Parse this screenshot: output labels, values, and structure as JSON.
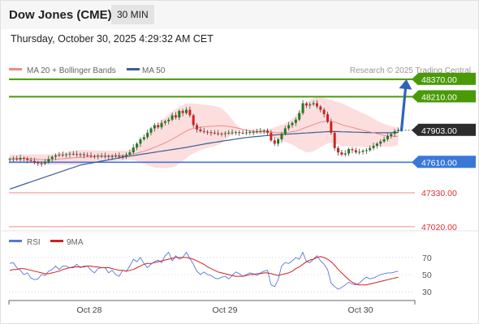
{
  "header": {
    "title": "Dow Jones (CME)",
    "timeframe": "30 MIN"
  },
  "timestamp": "Thursday, October 30, 2025 4:29:32 AM CET",
  "legend": {
    "ma20": "MA 20 + Bollinger Bands",
    "ma50": "MA 50",
    "credit": "Research © 2025 Trading Central",
    "rsi": "RSI",
    "ma9": "9MA"
  },
  "colors": {
    "green": "#4a9a08",
    "blue": "#3a78d8",
    "red": "#e03030",
    "candle_bull": "#1e7b1e",
    "candle_bear": "#d32020",
    "band": "#fbd3d3",
    "ma20": "#f08a8a",
    "ma50": "#3b5d9a",
    "rsi": "#5577d9",
    "ma9": "#d22020",
    "last": "#2c2c2c",
    "arrow": "#2e63b8"
  },
  "chart_data": [
    {
      "type": "candlestick",
      "x_labels": [
        "Oct 28",
        "Oct 29",
        "Oct 30"
      ],
      "ylim": [
        46900,
        48480
      ],
      "levels": [
        {
          "value": 48370,
          "label": "48370.00",
          "style": "resistance"
        },
        {
          "value": 48210,
          "label": "48210.00",
          "style": "resistance"
        },
        {
          "value": 47903,
          "label": "47903.00",
          "style": "last"
        },
        {
          "value": 47610,
          "label": "47610.00",
          "style": "support"
        },
        {
          "value": 47330,
          "label": "47330.00",
          "style": "support-minor"
        },
        {
          "value": 47020,
          "label": "47020.00",
          "style": "support-minor"
        }
      ],
      "closes": [
        47640,
        47645,
        47635,
        47650,
        47642,
        47630,
        47622,
        47610,
        47600,
        47598,
        47615,
        47640,
        47660,
        47672,
        47680,
        47676,
        47682,
        47688,
        47685,
        47678,
        47683,
        47675,
        47672,
        47668,
        47665,
        47670,
        47662,
        47668,
        47660,
        47665,
        47670,
        47660,
        47668,
        47680,
        47700,
        47745,
        47780,
        47820,
        47840,
        47880,
        47920,
        47950,
        47930,
        47970,
        47985,
        48000,
        48040,
        48020,
        48080,
        48060,
        48090,
        48040,
        47950,
        47910,
        47895,
        47890,
        47885,
        47880,
        47875,
        47872,
        47870,
        47875,
        47880,
        47882,
        47885,
        47880,
        47878,
        47883,
        47886,
        47888,
        47892,
        47895,
        47900,
        47880,
        47810,
        47780,
        47820,
        47870,
        47920,
        47950,
        47970,
        48000,
        48060,
        48150,
        48130,
        48140,
        48150,
        48120,
        48090,
        48050,
        47980,
        47880,
        47740,
        47700,
        47680,
        47690,
        47730,
        47720,
        47700,
        47705,
        47715,
        47720,
        47740,
        47760,
        47780,
        47800,
        47820,
        47850,
        47870,
        47895,
        47903
      ],
      "ma20": [
        47640,
        47641,
        47641,
        47643,
        47644,
        47643,
        47642,
        47640,
        47637,
        47634,
        47633,
        47633,
        47635,
        47637,
        47640,
        47642,
        47645,
        47648,
        47650,
        47653,
        47655,
        47656,
        47658,
        47659,
        47661,
        47663,
        47664,
        47666,
        47667,
        47668,
        47669,
        47670,
        47671,
        47674,
        47678,
        47685,
        47693,
        47702,
        47711,
        47722,
        47734,
        47747,
        47759,
        47773,
        47788,
        47803,
        47821,
        47838,
        47858,
        47877,
        47896,
        47910,
        47919,
        47926,
        47931,
        47934,
        47937,
        47939,
        47941,
        47943,
        47944,
        47942,
        47938,
        47933,
        47927,
        47919,
        47910,
        47903,
        47897,
        47892,
        47890,
        47890,
        47891,
        47890,
        47886,
        47881,
        47879,
        47879,
        47881,
        47885,
        47890,
        47896,
        47905,
        47918,
        47930,
        47942,
        47955,
        47966,
        47976,
        47983,
        47986,
        47985,
        47977,
        47967,
        47955,
        47945,
        47937,
        47929,
        47920,
        47912,
        47904,
        47895,
        47888,
        47880,
        47872,
        47864,
        47856,
        47850,
        47847,
        47847,
        47848
      ],
      "bb_upper": [
        47680,
        47681,
        47681,
        47683,
        47684,
        47683,
        47682,
        47682,
        47682,
        47681,
        47681,
        47682,
        47684,
        47688,
        47693,
        47698,
        47704,
        47710,
        47716,
        47720,
        47722,
        47721,
        47720,
        47720,
        47719,
        47718,
        47718,
        47717,
        47716,
        47716,
        47716,
        47716,
        47716,
        47718,
        47724,
        47740,
        47764,
        47796,
        47826,
        47858,
        47895,
        47933,
        47960,
        47992,
        48022,
        48048,
        48078,
        48098,
        48118,
        48134,
        48148,
        48148,
        48148,
        48145,
        48141,
        48137,
        48133,
        48129,
        48125,
        48118,
        48101,
        48075,
        48040,
        48000,
        47960,
        47930,
        47915,
        47910,
        47910,
        47910,
        47910,
        47910,
        47910,
        47910,
        47918,
        47930,
        47940,
        47950,
        47965,
        47985,
        48010,
        48040,
        48080,
        48120,
        48160,
        48180,
        48200,
        48205,
        48205,
        48200,
        48190,
        48180,
        48170,
        48160,
        48150,
        48135,
        48120,
        48105,
        48090,
        48075,
        48060,
        48045,
        48030,
        48010,
        47990,
        47975,
        47960,
        47950,
        47940,
        47935,
        47930
      ],
      "bb_lower": [
        47600,
        47601,
        47601,
        47603,
        47604,
        47603,
        47602,
        47598,
        47592,
        47587,
        47585,
        47584,
        47586,
        47586,
        47587,
        47586,
        47586,
        47586,
        47584,
        47586,
        47588,
        47591,
        47596,
        47598,
        47603,
        47608,
        47610,
        47615,
        47618,
        47620,
        47622,
        47624,
        47626,
        47630,
        47632,
        47630,
        47622,
        47608,
        47596,
        47586,
        47573,
        47561,
        47558,
        47554,
        47554,
        47558,
        47564,
        47578,
        47598,
        47620,
        47644,
        47672,
        47690,
        47707,
        47721,
        47731,
        47741,
        47749,
        47757,
        47768,
        47787,
        47809,
        47836,
        47866,
        47894,
        47908,
        47905,
        47896,
        47884,
        47874,
        47870,
        47870,
        47872,
        47870,
        47854,
        47832,
        47818,
        47808,
        47797,
        47785,
        47770,
        47752,
        47730,
        47716,
        47700,
        47704,
        47710,
        47727,
        47747,
        47766,
        47782,
        47790,
        47784,
        47774,
        47760,
        47755,
        47754,
        47753,
        47750,
        47749,
        47748,
        47745,
        47746,
        47750,
        47754,
        47753,
        47752,
        47750,
        47754,
        47759,
        47766
      ],
      "ma50": [
        47365,
        47375,
        47386,
        47397,
        47408,
        47419,
        47430,
        47441,
        47452,
        47463,
        47474,
        47485,
        47496,
        47507,
        47518,
        47529,
        47540,
        47551,
        47562,
        47573,
        47584,
        47590,
        47596,
        47602,
        47608,
        47614,
        47620,
        47626,
        47632,
        47638,
        47644,
        47650,
        47656,
        47661,
        47666,
        47670,
        47676,
        47681,
        47686,
        47691,
        47696,
        47701,
        47706,
        47711,
        47716,
        47721,
        47726,
        47731,
        47736,
        47741,
        47746,
        47752,
        47758,
        47764,
        47770,
        47776,
        47782,
        47787,
        47792,
        47797,
        47802,
        47807,
        47812,
        47817,
        47822,
        47827,
        47832,
        47836,
        47840,
        47843,
        47846,
        47849,
        47852,
        47855,
        47858,
        47860,
        47862,
        47864,
        47866,
        47868,
        47870,
        47872,
        47874,
        47876,
        47878,
        47880,
        47882,
        47884,
        47886,
        47888,
        47890,
        47891,
        47891,
        47890,
        47889,
        47888,
        47887,
        47886,
        47885,
        47884,
        47883,
        47882,
        47881,
        47880,
        47880,
        47880,
        47880,
        47880,
        47881,
        47882,
        47883
      ]
    },
    {
      "type": "line",
      "name": "RSI",
      "ylim": [
        15,
        85
      ],
      "y_ticks": [
        70,
        50,
        30
      ],
      "rsi": [
        63,
        64,
        58,
        55,
        50,
        52,
        46,
        44,
        45,
        50,
        49,
        54,
        56,
        60,
        56,
        60,
        60,
        58,
        58,
        62,
        58,
        60,
        60,
        55,
        52,
        57,
        58,
        58,
        52,
        55,
        50,
        48,
        55,
        54,
        60,
        68,
        65,
        70,
        63,
        58,
        62,
        65,
        67,
        64,
        72,
        76,
        66,
        72,
        68,
        70,
        76,
        69,
        62,
        54,
        50,
        53,
        50,
        49,
        46,
        45,
        47,
        48,
        45,
        49,
        53,
        51,
        48,
        50,
        52,
        51,
        49,
        52,
        54,
        55,
        38,
        36,
        44,
        60,
        64,
        63,
        66,
        70,
        68,
        76,
        65,
        64,
        68,
        72,
        66,
        62,
        56,
        40,
        36,
        33,
        35,
        38,
        41,
        39,
        38,
        40,
        44,
        47,
        45,
        46,
        48,
        50,
        51,
        52,
        52,
        53,
        54
      ],
      "ma9": [
        55,
        56,
        56,
        57,
        57,
        56,
        55,
        54,
        53,
        52,
        51,
        51,
        52,
        53,
        54,
        56,
        57,
        58,
        59,
        59,
        59,
        59,
        60,
        60,
        59,
        59,
        58,
        58,
        58,
        57,
        56,
        55,
        55,
        54,
        55,
        56,
        58,
        60,
        62,
        63,
        63,
        64,
        65,
        66,
        67,
        68,
        69,
        70,
        70,
        70,
        70,
        69,
        68,
        66,
        64,
        62,
        59,
        57,
        55,
        53,
        52,
        51,
        50,
        49,
        48,
        48,
        48,
        49,
        50,
        50,
        51,
        51,
        52,
        52,
        51,
        50,
        49,
        50,
        51,
        52,
        54,
        57,
        59,
        62,
        65,
        67,
        68,
        70,
        71,
        70,
        68,
        65,
        61,
        56,
        52,
        48,
        44,
        41,
        39,
        38,
        38,
        38,
        39,
        40,
        41,
        42,
        43,
        44,
        45,
        46,
        47
      ]
    }
  ]
}
